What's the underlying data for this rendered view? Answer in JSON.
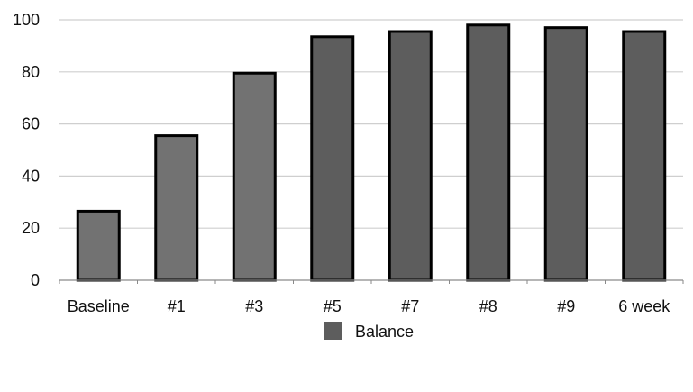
{
  "chart_data": {
    "type": "bar",
    "categories": [
      "Baseline",
      "#1",
      "#3",
      "#5",
      "#7",
      "#8",
      "#9",
      "6 week"
    ],
    "series": [
      {
        "name": "Balance",
        "values": [
          26.5,
          55.5,
          79.5,
          93.5,
          95.5,
          98,
          97,
          95.5
        ]
      }
    ],
    "ylim": [
      0,
      100
    ],
    "yticks": [
      0,
      20,
      40,
      60,
      80,
      100
    ],
    "grid": true,
    "legend_position": "bottom",
    "colors": {
      "bar_light": "#727272",
      "bar_dark": "#5d5d5d",
      "bar_outline": "#000000",
      "grid": "#cfcfcf",
      "axis": "#8a8a8a"
    }
  }
}
